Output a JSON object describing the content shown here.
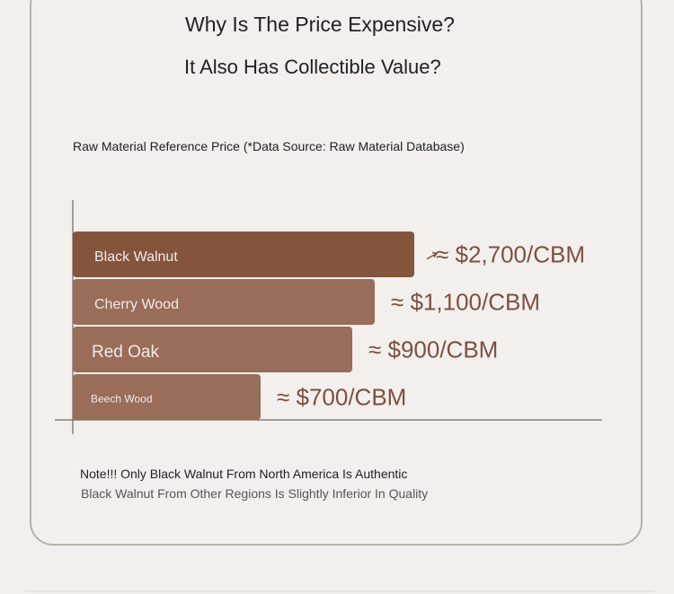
{
  "header": {
    "title_line1": "Why Is The Price Expensive?",
    "title_line2": "It Also Has Collectible Value?"
  },
  "chart_data": {
    "type": "bar",
    "orientation": "horizontal",
    "title": "Raw Material Reference Price (*Data Source: Raw Material Database)",
    "categories": [
      "Black Walnut",
      "Cherry Wood",
      "Red Oak",
      "Beech Wood"
    ],
    "values": [
      2700,
      1100,
      900,
      700
    ],
    "value_labels": [
      "≈ $2,700/CBM",
      "≈ $1,100/CBM",
      "≈ $900/CBM",
      "≈ $700/CBM"
    ],
    "unit": "$/CBM",
    "colors": [
      "#84553c",
      "#9a6c5a",
      "#9a6c5a",
      "#9a6c5a"
    ]
  },
  "notes": {
    "line1": "Note!!! Only Black Walnut From North America Is Authentic",
    "line2": "Black Walnut From Other Regions Is Slightly Inferior In Quality"
  },
  "icons": {
    "arrow_icon": "arrow-icon"
  }
}
